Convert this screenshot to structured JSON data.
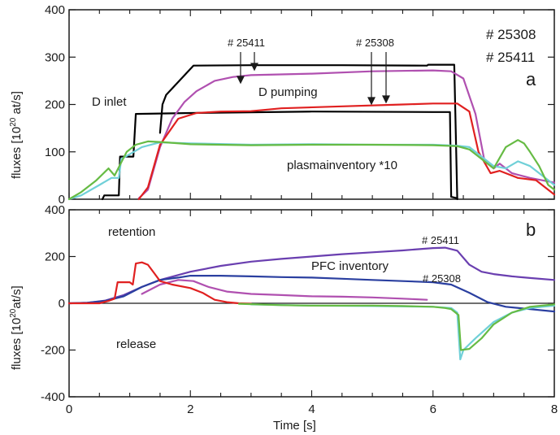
{
  "chart_data": [
    {
      "panel": "a",
      "type": "line",
      "ylabel": "fluxes [10^20 at/s]",
      "ylabel_parts": [
        "fluxes [10",
        "20",
        " at/s]"
      ],
      "xlim": [
        0,
        8
      ],
      "ylim": [
        0,
        400
      ],
      "yticks": [
        0,
        100,
        200,
        300,
        400
      ],
      "panel_label": "a",
      "shot_legend": [
        "# 25308",
        "# 25411"
      ],
      "annotations": {
        "d_inlet": "D inlet",
        "d_pumping": "D pumping",
        "plasma": "plasmainventory *10",
        "arrow_25411": "# 25411",
        "arrow_25308": "# 25308"
      },
      "series": [
        {
          "color": "#000000",
          "points": [
            [
              0.55,
              0
            ],
            [
              0.58,
              8
            ],
            [
              0.82,
              8
            ],
            [
              0.84,
              90
            ],
            [
              1.06,
              90
            ],
            [
              1.1,
              180
            ],
            [
              2.0,
              182
            ],
            [
              4.0,
              185
            ],
            [
              6.0,
              184
            ],
            [
              6.28,
              184
            ],
            [
              6.3,
              5
            ],
            [
              6.4,
              2
            ]
          ]
        },
        {
          "color": "#000000",
          "points": [
            [
              1.5,
              140
            ],
            [
              1.54,
              200
            ],
            [
              1.6,
              220
            ],
            [
              2.05,
              282
            ],
            [
              3.0,
              283
            ],
            [
              4.5,
              283
            ],
            [
              5.9,
              282
            ],
            [
              5.92,
              284
            ],
            [
              6.35,
              284
            ],
            [
              6.4,
              0
            ]
          ]
        },
        {
          "color": "#b050b0",
          "points": [
            [
              1.15,
              2
            ],
            [
              1.3,
              20
            ],
            [
              1.5,
              110
            ],
            [
              1.7,
              170
            ],
            [
              1.9,
              205
            ],
            [
              2.1,
              228
            ],
            [
              2.4,
              250
            ],
            [
              2.7,
              258
            ],
            [
              3.0,
              262
            ],
            [
              4.0,
              265
            ],
            [
              5.0,
              270
            ],
            [
              6.0,
              272
            ],
            [
              6.3,
              270
            ],
            [
              6.5,
              255
            ],
            [
              6.7,
              180
            ],
            [
              6.85,
              80
            ],
            [
              7.0,
              65
            ],
            [
              7.1,
              75
            ],
            [
              7.3,
              55
            ],
            [
              7.6,
              45
            ],
            [
              8.0,
              35
            ]
          ]
        },
        {
          "color": "#e02020",
          "points": [
            [
              1.15,
              0
            ],
            [
              1.3,
              25
            ],
            [
              1.5,
              115
            ],
            [
              1.8,
              170
            ],
            [
              2.1,
              182
            ],
            [
              2.5,
              185
            ],
            [
              3.0,
              186
            ],
            [
              3.5,
              192
            ],
            [
              4.5,
              196
            ],
            [
              5.5,
              200
            ],
            [
              6.0,
              202
            ],
            [
              6.4,
              202
            ],
            [
              6.6,
              185
            ],
            [
              6.75,
              100
            ],
            [
              6.95,
              55
            ],
            [
              7.1,
              60
            ],
            [
              7.4,
              45
            ],
            [
              7.7,
              40
            ],
            [
              8.0,
              10
            ]
          ]
        },
        {
          "color": "#70d0d8",
          "points": [
            [
              0.0,
              0
            ],
            [
              0.2,
              8
            ],
            [
              0.5,
              30
            ],
            [
              0.7,
              45
            ],
            [
              0.82,
              45
            ],
            [
              0.86,
              85
            ],
            [
              1.0,
              95
            ],
            [
              1.2,
              110
            ],
            [
              1.5,
              120
            ],
            [
              2.0,
              118
            ],
            [
              3.0,
              115
            ],
            [
              4.0,
              116
            ],
            [
              5.0,
              115
            ],
            [
              6.0,
              115
            ],
            [
              6.4,
              113
            ],
            [
              6.6,
              110
            ],
            [
              6.8,
              90
            ],
            [
              7.0,
              70
            ],
            [
              7.2,
              65
            ],
            [
              7.4,
              80
            ],
            [
              7.6,
              70
            ],
            [
              7.8,
              50
            ],
            [
              8.0,
              30
            ]
          ]
        },
        {
          "color": "#66bb44",
          "points": [
            [
              0.0,
              0
            ],
            [
              0.2,
              15
            ],
            [
              0.45,
              40
            ],
            [
              0.65,
              65
            ],
            [
              0.75,
              50
            ],
            [
              0.85,
              75
            ],
            [
              0.95,
              100
            ],
            [
              1.1,
              115
            ],
            [
              1.3,
              122
            ],
            [
              1.6,
              120
            ],
            [
              2.0,
              116
            ],
            [
              3.0,
              114
            ],
            [
              4.0,
              115
            ],
            [
              5.0,
              115
            ],
            [
              6.0,
              114
            ],
            [
              6.4,
              112
            ],
            [
              6.6,
              105
            ],
            [
              6.8,
              85
            ],
            [
              7.0,
              65
            ],
            [
              7.2,
              110
            ],
            [
              7.4,
              125
            ],
            [
              7.5,
              118
            ],
            [
              7.6,
              100
            ],
            [
              7.75,
              70
            ],
            [
              7.9,
              30
            ],
            [
              8.0,
              20
            ]
          ]
        }
      ]
    },
    {
      "panel": "b",
      "type": "line",
      "xlabel": "Time [s]",
      "ylabel": "fluxes [10^20 at/s]",
      "ylabel_parts": [
        "fluxes [10",
        "20",
        "at/s]"
      ],
      "xlim": [
        0,
        8
      ],
      "ylim": [
        -400,
        400
      ],
      "xticks": [
        0,
        2,
        4,
        6,
        8
      ],
      "yticks": [
        -400,
        -200,
        0,
        200,
        400
      ],
      "panel_label": "b",
      "annotations": {
        "retention": "retention",
        "release": "release",
        "pfc": "PFC inventory",
        "shot_25411": "# 25411",
        "shot_25308": "# 25308"
      },
      "series": [
        {
          "color": "#6a3fb0",
          "points": [
            [
              0.0,
              0
            ],
            [
              0.3,
              2
            ],
            [
              0.6,
              12
            ],
            [
              0.9,
              35
            ],
            [
              1.2,
              70
            ],
            [
              1.5,
              100
            ],
            [
              2.0,
              135
            ],
            [
              2.5,
              160
            ],
            [
              3.0,
              178
            ],
            [
              3.5,
              190
            ],
            [
              4.0,
              200
            ],
            [
              4.5,
              210
            ],
            [
              5.0,
              218
            ],
            [
              5.5,
              226
            ],
            [
              6.0,
              236
            ],
            [
              6.2,
              238
            ],
            [
              6.4,
              225
            ],
            [
              6.6,
              165
            ],
            [
              6.8,
              135
            ],
            [
              7.0,
              125
            ],
            [
              7.3,
              115
            ],
            [
              7.6,
              108
            ],
            [
              8.0,
              100
            ]
          ]
        },
        {
          "color": "#2a3fa0",
          "points": [
            [
              0.0,
              0
            ],
            [
              0.3,
              2
            ],
            [
              0.6,
              10
            ],
            [
              0.9,
              30
            ],
            [
              1.2,
              70
            ],
            [
              1.5,
              100
            ],
            [
              1.8,
              110
            ],
            [
              2.0,
              118
            ],
            [
              2.5,
              118
            ],
            [
              3.0,
              115
            ],
            [
              3.5,
              112
            ],
            [
              4.0,
              110
            ],
            [
              4.5,
              105
            ],
            [
              5.0,
              100
            ],
            [
              5.5,
              95
            ],
            [
              6.0,
              90
            ],
            [
              6.3,
              80
            ],
            [
              6.6,
              45
            ],
            [
              6.9,
              5
            ],
            [
              7.2,
              -15
            ],
            [
              7.6,
              -25
            ],
            [
              8.0,
              -35
            ]
          ]
        },
        {
          "color": "#b050b0",
          "points": [
            [
              1.2,
              40
            ],
            [
              1.5,
              80
            ],
            [
              1.8,
              100
            ],
            [
              2.05,
              95
            ],
            [
              2.3,
              70
            ],
            [
              2.6,
              50
            ],
            [
              3.0,
              40
            ],
            [
              3.5,
              35
            ],
            [
              4.0,
              30
            ],
            [
              4.5,
              28
            ],
            [
              5.0,
              25
            ],
            [
              5.5,
              20
            ],
            [
              5.9,
              15
            ]
          ]
        },
        {
          "color": "#e02020",
          "points": [
            [
              0.0,
              0
            ],
            [
              0.5,
              0
            ],
            [
              0.65,
              10
            ],
            [
              0.75,
              20
            ],
            [
              0.8,
              90
            ],
            [
              1.0,
              90
            ],
            [
              1.05,
              80
            ],
            [
              1.1,
              170
            ],
            [
              1.2,
              175
            ],
            [
              1.3,
              165
            ],
            [
              1.4,
              130
            ],
            [
              1.5,
              95
            ],
            [
              1.7,
              80
            ],
            [
              2.0,
              65
            ],
            [
              2.2,
              45
            ],
            [
              2.4,
              15
            ],
            [
              2.6,
              5
            ],
            [
              2.8,
              0
            ],
            [
              3.0,
              -2
            ]
          ]
        },
        {
          "color": "#70d0d8",
          "points": [
            [
              3.0,
              -5
            ],
            [
              4.0,
              -10
            ],
            [
              5.0,
              -12
            ],
            [
              6.0,
              -15
            ],
            [
              6.3,
              -20
            ],
            [
              6.4,
              -40
            ],
            [
              6.45,
              -240
            ],
            [
              6.5,
              -200
            ],
            [
              6.7,
              -150
            ],
            [
              7.0,
              -80
            ],
            [
              7.3,
              -40
            ],
            [
              7.6,
              -20
            ],
            [
              8.0,
              -10
            ]
          ]
        },
        {
          "color": "#66bb44",
          "points": [
            [
              2.8,
              -2
            ],
            [
              3.5,
              -8
            ],
            [
              4.0,
              -10
            ],
            [
              4.5,
              -10
            ],
            [
              5.0,
              -10
            ],
            [
              5.5,
              -12
            ],
            [
              6.0,
              -15
            ],
            [
              6.2,
              -20
            ],
            [
              6.3,
              -25
            ],
            [
              6.42,
              -50
            ],
            [
              6.46,
              -200
            ],
            [
              6.6,
              -195
            ],
            [
              6.8,
              -150
            ],
            [
              7.0,
              -90
            ],
            [
              7.3,
              -40
            ],
            [
              7.6,
              -15
            ],
            [
              8.0,
              -5
            ]
          ]
        }
      ]
    }
  ]
}
